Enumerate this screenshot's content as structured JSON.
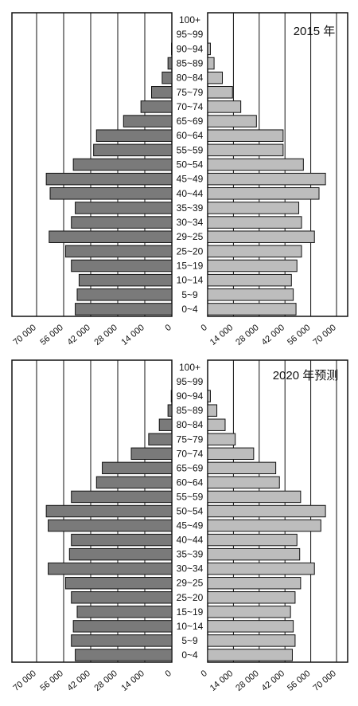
{
  "chart_data": [
    {
      "type": "bar",
      "title": "2015 年",
      "left_axis": {
        "ticks": [
          "70 000",
          "56 000",
          "42 000",
          "28 000",
          "14 000",
          "0"
        ],
        "xlim": [
          0,
          70000
        ]
      },
      "right_axis": {
        "ticks": [
          "0",
          "14 000",
          "28 000",
          "42 000",
          "56 000",
          "70 000"
        ],
        "xlim": [
          0,
          70000
        ]
      },
      "grid": true,
      "categories": [
        "100+",
        "95~99",
        "90~94",
        "85~89",
        "80~84",
        "75~79",
        "70~74",
        "65~69",
        "60~64",
        "55~59",
        "50~54",
        "45~49",
        "40~44",
        "35~39",
        "30~34",
        "29~25",
        "25~20",
        "15~19",
        "10~14",
        "5~9",
        "0~4"
      ],
      "left_values": [
        0,
        0,
        200,
        2000,
        5000,
        10500,
        16000,
        25000,
        39000,
        40500,
        51000,
        65000,
        63000,
        50000,
        52000,
        63500,
        55000,
        52000,
        48000,
        49000,
        50000
      ],
      "right_values": [
        0,
        0,
        1500,
        3500,
        8000,
        13500,
        18000,
        26500,
        41000,
        41000,
        52000,
        64000,
        60500,
        49500,
        51000,
        58000,
        51000,
        48500,
        45500,
        46500,
        48000
      ]
    },
    {
      "type": "bar",
      "title": "2020 年预测",
      "left_axis": {
        "ticks": [
          "70 000",
          "56 000",
          "42 000",
          "28 000",
          "14 000",
          "0"
        ],
        "xlim": [
          0,
          70000
        ]
      },
      "right_axis": {
        "ticks": [
          "0",
          "14 000",
          "28 000",
          "42 000",
          "56 000",
          "70 000"
        ],
        "xlim": [
          0,
          70000
        ]
      },
      "grid": true,
      "categories": [
        "100+",
        "95~99",
        "90~94",
        "85~89",
        "80~84",
        "75~79",
        "70~74",
        "65~69",
        "60~64",
        "55~59",
        "50~54",
        "45~49",
        "40~44",
        "35~39",
        "30~34",
        "29~25",
        "25~20",
        "15~19",
        "10~14",
        "5~9",
        "0~4"
      ],
      "left_values": [
        0,
        0,
        300,
        2000,
        6500,
        12000,
        21000,
        36000,
        39000,
        52000,
        65000,
        64000,
        52000,
        53000,
        64000,
        55000,
        52000,
        49000,
        51000,
        52000,
        50000
      ],
      "right_values": [
        0,
        0,
        1500,
        5000,
        9500,
        15000,
        25000,
        37000,
        39000,
        50500,
        64000,
        61500,
        48500,
        50000,
        58000,
        50500,
        47500,
        45000,
        46500,
        47500,
        46000
      ]
    }
  ],
  "colors": {
    "left_bar": "#7a7a7a",
    "right_bar": "#bdbdbd",
    "outline": "#111111",
    "grid": "#111111",
    "background": "#ffffff"
  }
}
